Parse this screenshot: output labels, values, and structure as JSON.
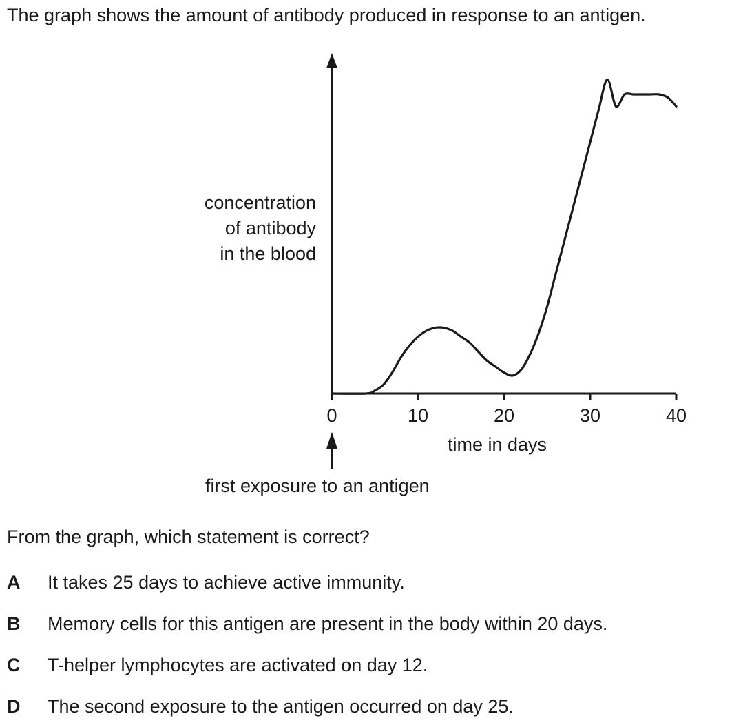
{
  "intro": "The graph shows the amount of antibody produced in response to an antigen.",
  "question": "From the graph, which statement is correct?",
  "options": [
    {
      "letter": "A",
      "text": "It takes 25 days to achieve active immunity."
    },
    {
      "letter": "B",
      "text": "Memory cells for this antigen are present in the body within 20 days."
    },
    {
      "letter": "C",
      "text": "T-helper lymphocytes are activated on day 12."
    },
    {
      "letter": "D",
      "text": "The second exposure to the antigen occurred on day 25."
    }
  ],
  "chart_data": {
    "type": "line",
    "title": "",
    "ylabel_lines": [
      "concentration",
      "of antibody",
      "in the blood"
    ],
    "xlabel": "time in days",
    "x_ticks": [
      0,
      10,
      20,
      30,
      40
    ],
    "xlim": [
      0,
      40
    ],
    "ylim": [
      0,
      100
    ],
    "y_ticks_shown": false,
    "grid": false,
    "annotation": "first exposure to an antigen",
    "annotation_x": 0,
    "series": [
      {
        "x": [
          0,
          4,
          5,
          6,
          7,
          8,
          9,
          10,
          11,
          12,
          13,
          14,
          15,
          16,
          17,
          18,
          19,
          20,
          21,
          22,
          23,
          24,
          25,
          26,
          27,
          28,
          29,
          30,
          31,
          32,
          33,
          34,
          35,
          36,
          37,
          38,
          39,
          40
        ],
        "y": [
          0,
          0,
          1,
          3,
          7,
          12,
          16,
          19,
          21,
          22,
          22,
          21,
          19,
          17,
          14,
          11,
          9,
          7,
          6,
          8,
          13,
          20,
          29,
          40,
          51,
          62,
          73,
          84,
          95,
          105,
          96,
          100,
          100,
          100,
          100,
          100,
          99,
          96
        ]
      }
    ]
  }
}
